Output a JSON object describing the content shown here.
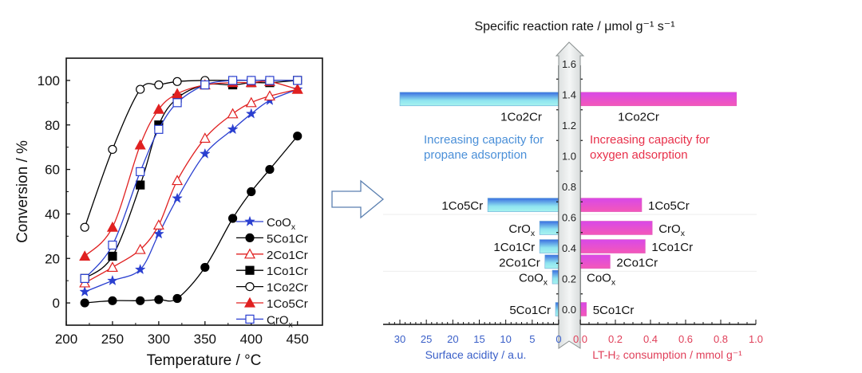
{
  "chart_data": [
    {
      "type": "line",
      "xlabel": "Temperature / °C",
      "ylabel": "Conversion / %",
      "xlim": [
        200,
        477
      ],
      "ylim": [
        -10,
        110
      ],
      "xticks": [
        200,
        250,
        300,
        350,
        400,
        450
      ],
      "yticks": [
        0,
        20,
        40,
        60,
        80,
        100
      ],
      "legend_position": "bottom-right",
      "x": [
        220,
        250,
        280,
        300,
        320,
        350,
        380,
        400,
        420,
        450
      ],
      "series": [
        {
          "name": "CoOx",
          "label": "CoO",
          "sub": "x",
          "color": "#2a3fd0",
          "marker": "star",
          "values": [
            5,
            10,
            15,
            31,
            47,
            67,
            78,
            85,
            91,
            96
          ]
        },
        {
          "name": "5Co1Cr",
          "label": "5Co1Cr",
          "color": "#000000",
          "marker": "circle-filled",
          "values": [
            0,
            1,
            1,
            1.5,
            2,
            16,
            38,
            50,
            60,
            75
          ]
        },
        {
          "name": "2Co1Cr",
          "label": "2Co1Cr",
          "color": "#e02020",
          "marker": "triangle-open",
          "values": [
            9,
            16,
            24,
            35,
            55,
            74,
            85,
            90,
            93,
            96
          ]
        },
        {
          "name": "1Co1Cr",
          "label": "1Co1Cr",
          "color": "#000000",
          "marker": "square-filled",
          "values": [
            11,
            21,
            53,
            80,
            92,
            98,
            98,
            99,
            99,
            100
          ]
        },
        {
          "name": "1Co2Cr",
          "label": "1Co2Cr",
          "color": "#000000",
          "marker": "circle-open",
          "values": [
            34,
            69,
            96,
            98,
            99.5,
            100,
            100,
            100,
            100,
            100
          ]
        },
        {
          "name": "1Co5Cr",
          "label": "1Co5Cr",
          "color": "#e02020",
          "marker": "triangle-filled",
          "values": [
            21,
            34,
            71,
            87,
            94,
            98,
            99,
            99,
            99.5,
            96
          ]
        },
        {
          "name": "CrOx",
          "label": "CrO",
          "sub": "x",
          "color": "#2a3fd0",
          "marker": "square-open",
          "values": [
            11,
            26,
            59,
            78,
            90,
            98,
            100,
            100,
            100,
            100
          ]
        }
      ]
    },
    {
      "type": "bar",
      "title": "Specific reaction rate / μmol g⁻¹ s⁻¹",
      "center_axis": {
        "label": "Specific reaction rate",
        "range": [
          0,
          1.6
        ],
        "ticks": [
          "0.0",
          "0.2",
          "0.4",
          "0.6",
          "0.8",
          "1.0",
          "1.2",
          "1.4",
          "1.6"
        ]
      },
      "left_axis": {
        "label": "Surface acidity / a.u.",
        "range": [
          0,
          30
        ],
        "ticks": [
          "0",
          "5",
          "10",
          "15",
          "20",
          "25",
          "30"
        ],
        "color": "#3a5fc8"
      },
      "right_axis": {
        "label": "LT-H₂ consumption / mmol g⁻¹",
        "range": [
          0,
          1.0
        ],
        "ticks": [
          "0.0",
          "0.2",
          "0.4",
          "0.6",
          "0.8",
          "1.0"
        ],
        "color": "#e0405a"
      },
      "annotations": {
        "left": [
          "Increasing capacity for",
          "propane adsorption"
        ],
        "right": [
          "Increasing capacity for",
          "oxygen adsorption"
        ],
        "left_color": "#4a8fd8",
        "right_color": "#e8304a"
      },
      "bars": [
        {
          "name": "1Co2Cr",
          "label": "1Co2Cr",
          "rate": 1.37,
          "acidity": 30,
          "h2": 0.89,
          "label_below": true
        },
        {
          "name": "1Co5Cr",
          "label": "1Co5Cr",
          "rate": 0.68,
          "acidity": 13.4,
          "h2": 0.35
        },
        {
          "name": "CrOx",
          "label": "CrO",
          "sub": "x",
          "rate": 0.53,
          "acidity": 3.6,
          "h2": 0.41
        },
        {
          "name": "1Co1Cr",
          "label": "1Co1Cr",
          "rate": 0.41,
          "acidity": 3.6,
          "h2": 0.37
        },
        {
          "name": "2Co1Cr",
          "label": "2Co1Cr",
          "rate": 0.31,
          "acidity": 2.6,
          "h2": 0.17
        },
        {
          "name": "CoOx",
          "label": "CoO",
          "sub": "x",
          "rate": 0.21,
          "acidity": 1.2,
          "h2": 0.0
        },
        {
          "name": "5Co1Cr",
          "label": "5Co1Cr",
          "rate": 0.0,
          "acidity": 0.6,
          "h2": 0.035
        }
      ]
    }
  ]
}
